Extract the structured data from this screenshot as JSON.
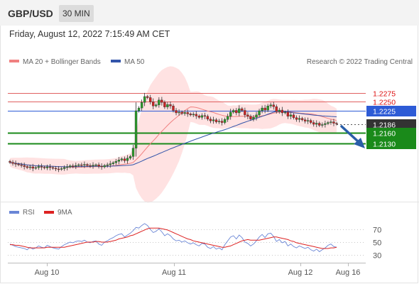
{
  "header": {
    "pair": "GBP/USD",
    "timeframe": "30 MIN"
  },
  "datetime": "Friday, August 12, 2022 7:15:49 AM CET",
  "legend": {
    "ma20": "MA 20 + Bollinger Bands",
    "ma50": "MA 50",
    "copyright": "Research © 2022 Trading Central"
  },
  "colors": {
    "ma20": "#f08080",
    "ma50": "#3355aa",
    "resistance": "#e06060",
    "pivot": "#2d5bd6",
    "support": "#1a8a1a",
    "last": "#333333",
    "rsi": "#6a86d6",
    "rsi_ma": "#dd2222",
    "bullish": "#2a9a2a",
    "bearish": "#cc2222",
    "bands": "#ffd6d6",
    "arrow": "#2a5ea8"
  },
  "chart_data": [
    {
      "type": "candlestick",
      "x_ticks": [
        "Aug 10",
        "Aug 11",
        "Aug 12",
        "Aug 16"
      ],
      "ylim": [
        1.1995,
        1.23
      ],
      "levels": [
        {
          "name": "resistance-2",
          "value": 1.2275,
          "label": "1.2275"
        },
        {
          "name": "resistance-1",
          "value": 1.225,
          "label": "1.2250"
        },
        {
          "name": "pivot",
          "value": 1.2225,
          "label": "1.2225"
        },
        {
          "name": "last-price",
          "value": 1.2186,
          "label": "1.2186"
        },
        {
          "name": "support-1",
          "value": 1.216,
          "label": "1.2160"
        },
        {
          "name": "support-2",
          "value": 1.213,
          "label": "1.2130"
        }
      ],
      "close": [
        1.2075,
        1.2072,
        1.207,
        1.2068,
        1.2066,
        1.2063,
        1.206,
        1.2062,
        1.2058,
        1.206,
        1.2063,
        1.2061,
        1.2059,
        1.2062,
        1.206,
        1.2058,
        1.2056,
        1.2055,
        1.2057,
        1.206,
        1.2062,
        1.2065,
        1.2064,
        1.2066,
        1.2068,
        1.2067,
        1.2069,
        1.2066,
        1.2065,
        1.2067,
        1.2068,
        1.2064,
        1.2062,
        1.2066,
        1.2068,
        1.2071,
        1.2074,
        1.2078,
        1.2082,
        1.2085,
        1.208,
        1.2087,
        1.2092,
        1.2116,
        1.2224,
        1.2232,
        1.2248,
        1.2265,
        1.2262,
        1.225,
        1.2238,
        1.2241,
        1.2255,
        1.2248,
        1.2235,
        1.2242,
        1.2238,
        1.2225,
        1.2218,
        1.222,
        1.2216,
        1.2219,
        1.2215,
        1.2212,
        1.2214,
        1.2209,
        1.2205,
        1.221,
        1.2208,
        1.22,
        1.2195,
        1.2198,
        1.2192,
        1.2194,
        1.219,
        1.2199,
        1.2208,
        1.222,
        1.2225,
        1.2218,
        1.223,
        1.2225,
        1.2212,
        1.2208,
        1.22,
        1.2205,
        1.2212,
        1.2224,
        1.2232,
        1.2226,
        1.2238,
        1.2241,
        1.2236,
        1.2222,
        1.2226,
        1.2218,
        1.222,
        1.2208,
        1.2212,
        1.2204,
        1.2199,
        1.2202,
        1.2198,
        1.2194,
        1.2196,
        1.219,
        1.2185,
        1.2188,
        1.2182,
        1.2184,
        1.2187,
        1.219,
        1.2192,
        1.2188,
        1.2186
      ]
    },
    {
      "type": "line",
      "name": "RSI",
      "levels": [
        70,
        50,
        30
      ],
      "x_ticks": [
        "Aug 10",
        "Aug 11",
        "Aug 12",
        "Aug 16"
      ],
      "series": [
        {
          "name": "RSI",
          "values": [
            47,
            45,
            43,
            42,
            41,
            40,
            38,
            42,
            39,
            41,
            44,
            42,
            41,
            45,
            43,
            41,
            40,
            39,
            43,
            46,
            48,
            50,
            49,
            51,
            52,
            51,
            53,
            50,
            49,
            51,
            52,
            47,
            45,
            50,
            52,
            55,
            57,
            60,
            62,
            63,
            58,
            61,
            64,
            68,
            73,
            72,
            76,
            79,
            76,
            70,
            65,
            67,
            71,
            66,
            60,
            63,
            60,
            55,
            52,
            53,
            50,
            52,
            49,
            47,
            49,
            46,
            44,
            48,
            47,
            42,
            40,
            43,
            39,
            41,
            38,
            46,
            52,
            58,
            60,
            55,
            61,
            57,
            50,
            48,
            44,
            47,
            52,
            58,
            62,
            57,
            63,
            64,
            59,
            51,
            54,
            49,
            51,
            44,
            47,
            43,
            41,
            44,
            42,
            40,
            42,
            38,
            36,
            39,
            35,
            38,
            41,
            45,
            47,
            43,
            42
          ]
        },
        {
          "name": "9MA",
          "values": [
            46,
            46,
            45,
            45,
            44,
            43,
            42,
            41,
            41,
            41,
            41,
            41,
            41,
            42,
            42,
            42,
            42,
            42,
            42,
            42,
            43,
            44,
            45,
            46,
            47,
            48,
            49,
            50,
            50,
            50,
            51,
            51,
            50,
            50,
            50,
            51,
            52,
            53,
            55,
            56,
            57,
            58,
            60,
            61,
            63,
            65,
            67,
            69,
            71,
            72,
            72,
            72,
            72,
            71,
            70,
            69,
            67,
            65,
            63,
            61,
            59,
            57,
            55,
            54,
            52,
            51,
            50,
            49,
            48,
            47,
            46,
            45,
            44,
            43,
            42,
            42,
            43,
            44,
            46,
            48,
            50,
            52,
            53,
            54,
            53,
            53,
            53,
            53,
            54,
            55,
            56,
            57,
            58,
            58,
            57,
            56,
            55,
            54,
            52,
            51,
            49,
            48,
            47,
            46,
            45,
            44,
            43,
            42,
            41,
            40,
            40,
            40,
            41,
            41,
            42
          ]
        }
      ]
    }
  ]
}
